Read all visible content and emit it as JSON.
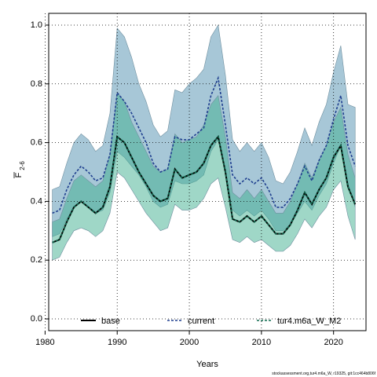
{
  "chart_data": {
    "type": "line",
    "title": "",
    "xlabel": "Years",
    "ylabel_main": "F",
    "ylabel_sub": "2-6",
    "xlim": [
      1980.5,
      2024.5
    ],
    "ylim": [
      -0.04,
      1.04
    ],
    "x_ticks": [
      1980,
      1990,
      2000,
      2010,
      2020
    ],
    "y_ticks": [
      0.0,
      0.2,
      0.4,
      0.6,
      0.8,
      1.0
    ],
    "grid": true,
    "legend_position": "bottom",
    "footer": "stockassessment.org,tur4.m6a_W, r19325, git:1cc464b806f",
    "years": [
      1981,
      1982,
      1983,
      1984,
      1985,
      1986,
      1987,
      1988,
      1989,
      1990,
      1991,
      1992,
      1993,
      1994,
      1995,
      1996,
      1997,
      1998,
      1999,
      2000,
      2001,
      2002,
      2003,
      2004,
      2005,
      2006,
      2007,
      2008,
      2009,
      2010,
      2011,
      2012,
      2013,
      2014,
      2015,
      2016,
      2017,
      2018,
      2019,
      2020,
      2021,
      2022,
      2023
    ],
    "series": [
      {
        "name": "base",
        "color": "#000000",
        "dash": "solid",
        "band_color": "#3FAF8F",
        "values": [
          0.26,
          0.27,
          0.33,
          0.38,
          0.4,
          0.38,
          0.36,
          0.38,
          0.45,
          0.62,
          0.6,
          0.55,
          0.5,
          0.46,
          0.42,
          0.4,
          0.41,
          0.51,
          0.48,
          0.49,
          0.5,
          0.53,
          0.59,
          0.62,
          0.5,
          0.34,
          0.33,
          0.35,
          0.33,
          0.35,
          0.32,
          0.29,
          0.29,
          0.32,
          0.37,
          0.43,
          0.39,
          0.44,
          0.48,
          0.55,
          0.59,
          0.45,
          0.39
        ],
        "lower": [
          0.2,
          0.21,
          0.26,
          0.3,
          0.31,
          0.3,
          0.28,
          0.3,
          0.36,
          0.5,
          0.48,
          0.44,
          0.4,
          0.36,
          0.33,
          0.3,
          0.31,
          0.39,
          0.37,
          0.37,
          0.38,
          0.41,
          0.46,
          0.48,
          0.38,
          0.27,
          0.26,
          0.28,
          0.26,
          0.27,
          0.25,
          0.23,
          0.23,
          0.25,
          0.29,
          0.34,
          0.31,
          0.35,
          0.38,
          0.44,
          0.47,
          0.35,
          0.27
        ],
        "upper": [
          0.33,
          0.34,
          0.41,
          0.47,
          0.49,
          0.47,
          0.45,
          0.47,
          0.56,
          0.77,
          0.74,
          0.67,
          0.62,
          0.57,
          0.52,
          0.5,
          0.51,
          0.63,
          0.6,
          0.61,
          0.62,
          0.66,
          0.73,
          0.76,
          0.62,
          0.43,
          0.41,
          0.44,
          0.41,
          0.44,
          0.4,
          0.36,
          0.36,
          0.4,
          0.46,
          0.53,
          0.48,
          0.54,
          0.59,
          0.67,
          0.72,
          0.56,
          0.48
        ]
      },
      {
        "name": "current",
        "color": "#1F3F8F",
        "dash": "dashed",
        "band_color": "#4F8FB0",
        "values": [
          0.36,
          0.37,
          0.44,
          0.49,
          0.52,
          0.5,
          0.47,
          0.48,
          0.56,
          0.77,
          0.74,
          0.7,
          0.65,
          0.6,
          0.53,
          0.5,
          0.51,
          0.62,
          0.61,
          0.61,
          0.63,
          0.65,
          0.76,
          0.82,
          0.66,
          0.49,
          0.46,
          0.48,
          0.46,
          0.48,
          0.44,
          0.38,
          0.38,
          0.41,
          0.46,
          0.52,
          0.47,
          0.54,
          0.59,
          0.68,
          0.76,
          0.59,
          0.52
        ],
        "lower": [
          0.28,
          0.29,
          0.34,
          0.38,
          0.4,
          0.38,
          0.36,
          0.37,
          0.43,
          0.57,
          0.55,
          0.52,
          0.49,
          0.45,
          0.4,
          0.38,
          0.39,
          0.47,
          0.46,
          0.46,
          0.47,
          0.49,
          0.57,
          0.61,
          0.5,
          0.37,
          0.35,
          0.37,
          0.35,
          0.37,
          0.34,
          0.3,
          0.3,
          0.32,
          0.36,
          0.4,
          0.37,
          0.42,
          0.46,
          0.53,
          0.59,
          0.46,
          0.38
        ],
        "upper": [
          0.44,
          0.45,
          0.53,
          0.6,
          0.63,
          0.61,
          0.57,
          0.59,
          0.7,
          0.99,
          0.96,
          0.89,
          0.8,
          0.74,
          0.66,
          0.62,
          0.64,
          0.78,
          0.77,
          0.8,
          0.82,
          0.85,
          0.96,
          1.0,
          0.83,
          0.61,
          0.57,
          0.6,
          0.57,
          0.6,
          0.55,
          0.47,
          0.46,
          0.5,
          0.57,
          0.65,
          0.59,
          0.67,
          0.73,
          0.84,
          0.93,
          0.73,
          0.72
        ]
      },
      {
        "name": "tur4.m6a_W_M2",
        "color": "#0F6A4F",
        "dash": "dashed",
        "values": [
          0.26,
          0.27,
          0.33,
          0.38,
          0.4,
          0.38,
          0.36,
          0.38,
          0.45,
          0.62,
          0.6,
          0.55,
          0.5,
          0.46,
          0.42,
          0.4,
          0.41,
          0.51,
          0.48,
          0.49,
          0.5,
          0.53,
          0.59,
          0.62,
          0.5,
          0.34,
          0.33,
          0.35,
          0.33,
          0.35,
          0.32,
          0.29,
          0.29,
          0.32,
          0.37,
          0.43,
          0.39,
          0.44,
          0.48,
          0.55,
          0.59,
          0.45,
          0.39
        ]
      }
    ]
  }
}
